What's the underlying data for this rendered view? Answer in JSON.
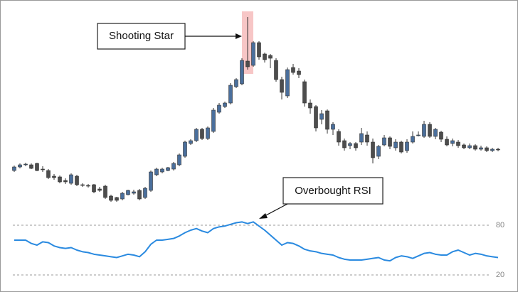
{
  "chart_data": [
    {
      "type": "candlestick",
      "annotation": "Shooting Star",
      "up_color": "#4a6f9c",
      "down_color": "#4d4d4d",
      "highlight_color": "#f7c6c6",
      "ylim": [
        0,
        290
      ],
      "open": [
        60,
        65,
        68,
        68,
        70,
        62,
        60,
        52,
        51,
        46,
        42,
        52,
        40,
        39,
        40,
        34,
        38,
        24,
        22,
        20,
        26,
        28,
        32,
        22,
        32,
        54,
        58,
        60,
        62,
        68,
        80,
        98,
        102,
        118,
        105,
        115,
        142,
        150,
        155,
        178,
        182,
        214,
        208,
        240,
        224,
        222,
        215,
        188,
        165,
        205,
        200,
        185,
        155,
        150,
        132,
        144,
        118,
        115,
        102,
        95,
        98,
        100,
        110,
        100,
        80,
        96,
        106,
        92,
        100,
        88,
        100,
        110,
        108,
        125,
        108,
        114,
        104,
        98,
        100,
        96,
        92,
        95,
        90,
        92,
        88,
        90
      ],
      "high": [
        67,
        70,
        71,
        70,
        71,
        66,
        62,
        55,
        53,
        49,
        56,
        54,
        42,
        41,
        41,
        37,
        40,
        26,
        23,
        30,
        33,
        33,
        34,
        37,
        60,
        64,
        64,
        65,
        72,
        84,
        102,
        104,
        120,
        120,
        122,
        148,
        155,
        157,
        183,
        190,
        218,
        276,
        242,
        242,
        226,
        224,
        218,
        192,
        205,
        210,
        204,
        188,
        160,
        152,
        145,
        146,
        128,
        118,
        105,
        100,
        100,
        120,
        115,
        105,
        96,
        110,
        108,
        104,
        102,
        104,
        115,
        115,
        130,
        128,
        120,
        116,
        108,
        105,
        103,
        98,
        98,
        97,
        95,
        94,
        92,
        92
      ],
      "low": [
        58,
        63,
        66,
        62,
        59,
        58,
        48,
        47,
        42,
        41,
        40,
        38,
        37,
        36,
        28,
        30,
        20,
        16,
        16,
        18,
        25,
        26,
        18,
        20,
        30,
        52,
        56,
        59,
        60,
        66,
        78,
        96,
        100,
        103,
        103,
        113,
        140,
        148,
        153,
        176,
        180,
        202,
        206,
        216,
        212,
        204,
        185,
        160,
        162,
        195,
        190,
        150,
        140,
        115,
        125,
        112,
        110,
        95,
        88,
        90,
        88,
        96,
        95,
        70,
        76,
        94,
        90,
        88,
        84,
        85,
        98,
        108,
        106,
        106,
        104,
        100,
        94,
        94,
        92,
        90,
        90,
        88,
        88,
        86,
        86,
        87
      ],
      "close": [
        65,
        68,
        69,
        63,
        60,
        61,
        50,
        50,
        44,
        44,
        54,
        40,
        39,
        38,
        30,
        32,
        22,
        18,
        18,
        28,
        32,
        30,
        20,
        35,
        58,
        62,
        62,
        64,
        70,
        82,
        100,
        102,
        118,
        105,
        120,
        145,
        152,
        155,
        180,
        188,
        215,
        206,
        240,
        220,
        216,
        218,
        188,
        170,
        202,
        198,
        195,
        155,
        148,
        120,
        140,
        118,
        125,
        100,
        92,
        98,
        92,
        112,
        100,
        78,
        94,
        106,
        94,
        100,
        86,
        100,
        108,
        110,
        125,
        108,
        118,
        104,
        96,
        102,
        95,
        92,
        95,
        90,
        92,
        88,
        90,
        89
      ]
    },
    {
      "type": "line",
      "annotation": "Overbought RSI",
      "color": "#2a8ae0",
      "ylim": [
        5,
        95
      ],
      "yticks": [
        20,
        80
      ],
      "grid": true,
      "values": [
        62,
        62,
        62,
        58,
        56,
        60,
        59,
        55,
        53,
        52,
        53,
        50,
        48,
        47,
        45,
        44,
        43,
        42,
        41,
        43,
        45,
        44,
        42,
        48,
        57,
        62,
        62,
        63,
        64,
        67,
        71,
        74,
        76,
        73,
        71,
        76,
        78,
        79,
        81,
        83,
        84,
        82,
        84,
        79,
        74,
        68,
        62,
        56,
        59,
        58,
        55,
        51,
        49,
        48,
        46,
        45,
        44,
        41,
        39,
        38,
        38,
        38,
        39,
        40,
        41,
        38,
        37,
        41,
        43,
        42,
        40,
        43,
        46,
        47,
        45,
        44,
        44,
        48,
        50,
        47,
        44,
        46,
        45,
        43,
        42,
        41
      ]
    }
  ]
}
